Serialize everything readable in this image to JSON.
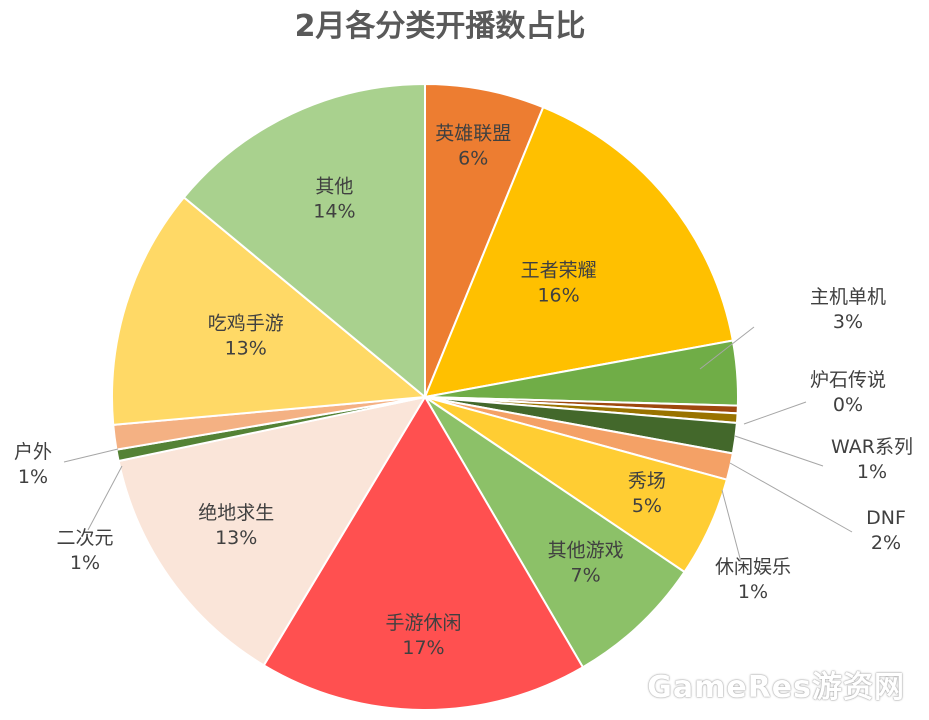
{
  "chart_data": {
    "type": "pie",
    "title": "2月各分类开播数占比",
    "start_angle_deg": 0,
    "direction": "clockwise",
    "slices": [
      {
        "label": "英雄联盟",
        "value": 6.3,
        "percent_label": "6%",
        "color": "#ED7D31"
      },
      {
        "label": "王者荣耀",
        "value": 16.3,
        "percent_label": "16%",
        "color": "#FFC000"
      },
      {
        "label": "主机单机",
        "value": 3.4,
        "percent_label": "3%",
        "color": "#70AD47"
      },
      {
        "label": "炉石传说",
        "value": 0.4,
        "percent_label": "0%",
        "color": "#9E480E"
      },
      {
        "label": "WAR系列",
        "value": 0.5,
        "percent_label": "1%",
        "color": "#997300"
      },
      {
        "label": "DNF",
        "value": 1.6,
        "percent_label": "2%",
        "color": "#43682B"
      },
      {
        "label": "休闲娱乐",
        "value": 1.4,
        "percent_label": "1%",
        "color": "#F4A166"
      },
      {
        "label": "秀场",
        "value": 5.3,
        "percent_label": "5%",
        "color": "#FFCD33"
      },
      {
        "label": "其他游戏",
        "value": 7.3,
        "percent_label": "7%",
        "color": "#8CC168"
      },
      {
        "label": "手游休闲",
        "value": 17.4,
        "percent_label": "17%",
        "color": "#FF5050"
      },
      {
        "label": "绝地求生",
        "value": 13.4,
        "percent_label": "13%",
        "color": "#FAE5D9"
      },
      {
        "label": "二次元",
        "value": 0.6,
        "percent_label": "1%",
        "color": "#548235"
      },
      {
        "label": "户外",
        "value": 1.3,
        "percent_label": "1%",
        "color": "#F4B183"
      },
      {
        "label": "吃鸡手游",
        "value": 12.7,
        "percent_label": "13%",
        "color": "#FFD966"
      },
      {
        "label": "其他",
        "value": 14.3,
        "percent_label": "14%",
        "color": "#A9D18E"
      }
    ]
  },
  "watermark": "GameRes游资网"
}
